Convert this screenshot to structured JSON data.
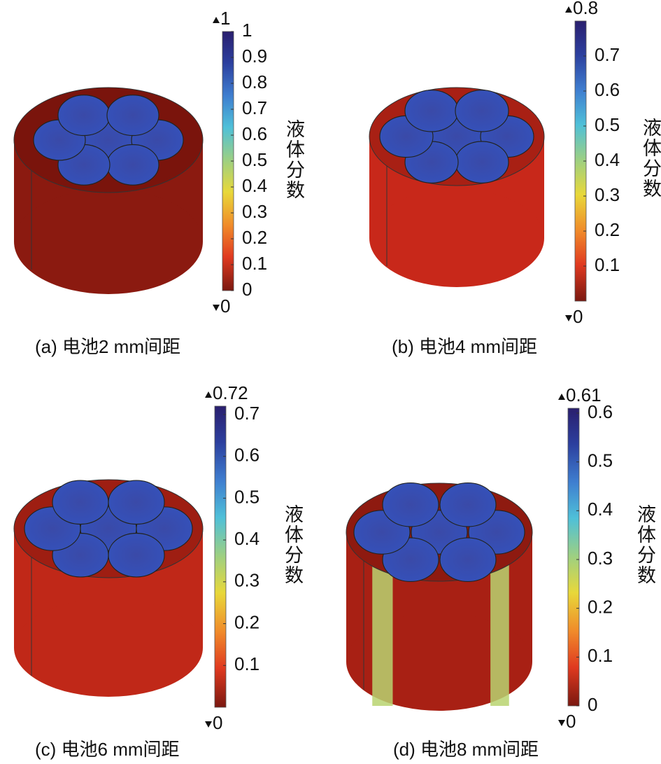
{
  "panels": [
    {
      "caption": "(a) 电池2 mm间距",
      "min": 0,
      "max": 1,
      "ticks": [
        0,
        0.1,
        0.2,
        0.3,
        0.4,
        0.5,
        0.6,
        0.7,
        0.8,
        0.9,
        1
      ],
      "colorbar_label": "液体分数"
    },
    {
      "caption": "(b) 电池4 mm间距",
      "min": 0,
      "max": 0.8,
      "ticks": [
        0.1,
        0.2,
        0.3,
        0.4,
        0.5,
        0.6,
        0.7
      ],
      "colorbar_label": "液体分数"
    },
    {
      "caption": "(c) 电池6 mm间距",
      "min": 0,
      "max": 0.72,
      "ticks": [
        0.1,
        0.2,
        0.3,
        0.4,
        0.5,
        0.6,
        0.7
      ],
      "colorbar_label": "液体分数"
    },
    {
      "caption": "(d) 电池8 mm间距",
      "min": 0,
      "max": 0.61,
      "ticks": [
        0,
        0.1,
        0.2,
        0.3,
        0.4,
        0.5,
        0.6
      ],
      "colorbar_label": "液体分数"
    }
  ]
}
